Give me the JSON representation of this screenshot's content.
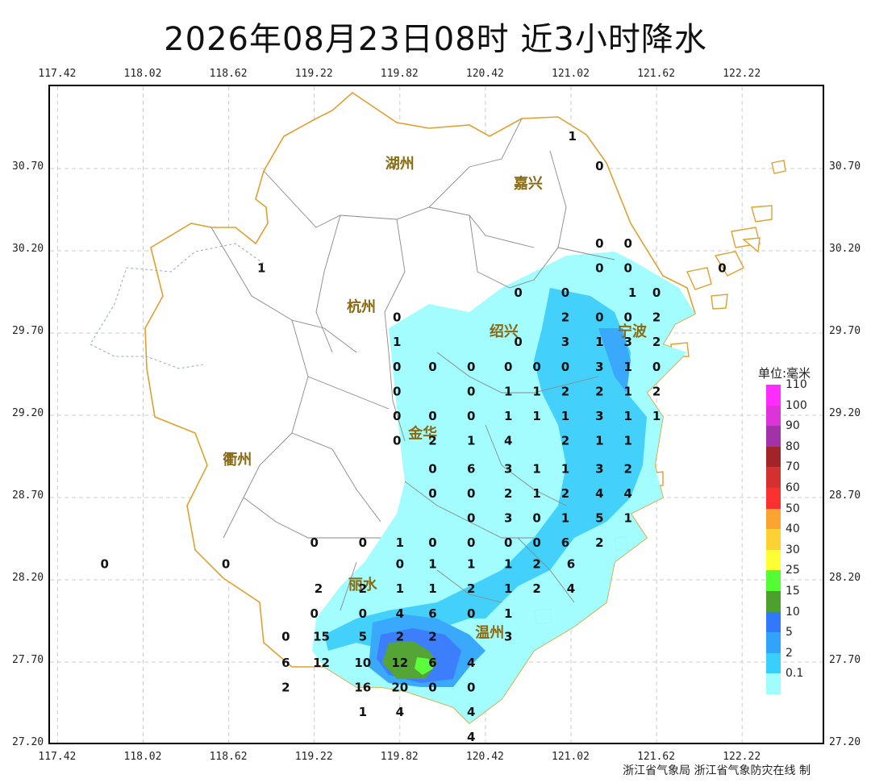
{
  "title": "2026年08月23日08时 近3小时降水",
  "credit": "浙江省气象局 浙江省气象防灾在线 制",
  "x_ticks": [
    "117.42",
    "118.02",
    "118.62",
    "119.22",
    "119.82",
    "120.42",
    "121.02",
    "121.62",
    "122.22"
  ],
  "y_ticks": [
    "30.70",
    "30.20",
    "29.70",
    "29.20",
    "28.70",
    "28.20",
    "27.70",
    "27.20"
  ],
  "cities": [
    {
      "name": "湖州",
      "lon": 119.82,
      "lat": 30.7
    },
    {
      "name": "嘉兴",
      "lon": 120.72,
      "lat": 30.58
    },
    {
      "name": "杭州",
      "lon": 119.55,
      "lat": 29.83
    },
    {
      "name": "绍兴",
      "lon": 120.55,
      "lat": 29.68
    },
    {
      "name": "宁波",
      "lon": 121.45,
      "lat": 29.68
    },
    {
      "name": "金华",
      "lon": 119.98,
      "lat": 29.06
    },
    {
      "name": "衢州",
      "lon": 118.68,
      "lat": 28.9
    },
    {
      "name": "丽水",
      "lon": 119.56,
      "lat": 28.14
    },
    {
      "name": "温州",
      "lon": 120.45,
      "lat": 27.85
    }
  ],
  "legend": {
    "title": "单位:毫米",
    "items": [
      {
        "label": "110",
        "color": "#ff2bff"
      },
      {
        "label": "100",
        "color": "#dc34d8"
      },
      {
        "label": "90",
        "color": "#a332a8"
      },
      {
        "label": "80",
        "color": "#a02428"
      },
      {
        "label": "70",
        "color": "#d23130"
      },
      {
        "label": "60",
        "color": "#fb3130"
      },
      {
        "label": "50",
        "color": "#fca431"
      },
      {
        "label": "40",
        "color": "#fdd033"
      },
      {
        "label": "30",
        "color": "#fffe34"
      },
      {
        "label": "25",
        "color": "#54fd33"
      },
      {
        "label": "15",
        "color": "#4ba12c"
      },
      {
        "label": "10",
        "color": "#3278fc"
      },
      {
        "label": "5",
        "color": "#30a4fb"
      },
      {
        "label": "2",
        "color": "#39cffb"
      },
      {
        "label": "0.1",
        "color": "#9ffdfe"
      }
    ]
  },
  "stations": [
    {
      "lon": 121.03,
      "lat": 30.9,
      "v": "1"
    },
    {
      "lon": 121.22,
      "lat": 30.72,
      "v": "0"
    },
    {
      "lon": 121.22,
      "lat": 30.25,
      "v": "0"
    },
    {
      "lon": 121.42,
      "lat": 30.25,
      "v": "0"
    },
    {
      "lon": 118.85,
      "lat": 30.1,
      "v": "1"
    },
    {
      "lon": 121.22,
      "lat": 30.1,
      "v": "0"
    },
    {
      "lon": 121.42,
      "lat": 30.1,
      "v": "0"
    },
    {
      "lon": 122.08,
      "lat": 30.1,
      "v": "0"
    },
    {
      "lon": 120.65,
      "lat": 29.95,
      "v": "0"
    },
    {
      "lon": 120.98,
      "lat": 29.95,
      "v": "0"
    },
    {
      "lon": 121.45,
      "lat": 29.95,
      "v": "1"
    },
    {
      "lon": 121.62,
      "lat": 29.95,
      "v": "0"
    },
    {
      "lon": 119.8,
      "lat": 29.8,
      "v": "0"
    },
    {
      "lon": 120.98,
      "lat": 29.8,
      "v": "2"
    },
    {
      "lon": 121.22,
      "lat": 29.8,
      "v": "0"
    },
    {
      "lon": 121.42,
      "lat": 29.8,
      "v": "0"
    },
    {
      "lon": 121.62,
      "lat": 29.8,
      "v": "2"
    },
    {
      "lon": 119.8,
      "lat": 29.65,
      "v": "1"
    },
    {
      "lon": 120.65,
      "lat": 29.65,
      "v": "0"
    },
    {
      "lon": 120.98,
      "lat": 29.65,
      "v": "3"
    },
    {
      "lon": 121.22,
      "lat": 29.65,
      "v": "1"
    },
    {
      "lon": 121.42,
      "lat": 29.65,
      "v": "3"
    },
    {
      "lon": 121.62,
      "lat": 29.65,
      "v": "2"
    },
    {
      "lon": 119.8,
      "lat": 29.5,
      "v": "0"
    },
    {
      "lon": 120.05,
      "lat": 29.5,
      "v": "0"
    },
    {
      "lon": 120.32,
      "lat": 29.5,
      "v": "0"
    },
    {
      "lon": 120.58,
      "lat": 29.5,
      "v": "0"
    },
    {
      "lon": 120.78,
      "lat": 29.5,
      "v": "0"
    },
    {
      "lon": 120.98,
      "lat": 29.5,
      "v": "0"
    },
    {
      "lon": 121.22,
      "lat": 29.5,
      "v": "3"
    },
    {
      "lon": 121.42,
      "lat": 29.5,
      "v": "1"
    },
    {
      "lon": 121.62,
      "lat": 29.5,
      "v": "0"
    },
    {
      "lon": 119.8,
      "lat": 29.35,
      "v": "0"
    },
    {
      "lon": 120.32,
      "lat": 29.35,
      "v": "0"
    },
    {
      "lon": 120.58,
      "lat": 29.35,
      "v": "1"
    },
    {
      "lon": 120.78,
      "lat": 29.35,
      "v": "1"
    },
    {
      "lon": 120.98,
      "lat": 29.35,
      "v": "2"
    },
    {
      "lon": 121.22,
      "lat": 29.35,
      "v": "2"
    },
    {
      "lon": 121.42,
      "lat": 29.35,
      "v": "1"
    },
    {
      "lon": 121.62,
      "lat": 29.35,
      "v": "2"
    },
    {
      "lon": 119.8,
      "lat": 29.2,
      "v": "0"
    },
    {
      "lon": 120.05,
      "lat": 29.2,
      "v": "0"
    },
    {
      "lon": 120.32,
      "lat": 29.2,
      "v": "0"
    },
    {
      "lon": 120.58,
      "lat": 29.2,
      "v": "1"
    },
    {
      "lon": 120.78,
      "lat": 29.2,
      "v": "1"
    },
    {
      "lon": 120.98,
      "lat": 29.2,
      "v": "1"
    },
    {
      "lon": 121.22,
      "lat": 29.2,
      "v": "3"
    },
    {
      "lon": 121.42,
      "lat": 29.2,
      "v": "1"
    },
    {
      "lon": 121.62,
      "lat": 29.2,
      "v": "1"
    },
    {
      "lon": 119.8,
      "lat": 29.05,
      "v": "0"
    },
    {
      "lon": 120.05,
      "lat": 29.05,
      "v": "2"
    },
    {
      "lon": 120.32,
      "lat": 29.05,
      "v": "1"
    },
    {
      "lon": 120.58,
      "lat": 29.05,
      "v": "4"
    },
    {
      "lon": 120.98,
      "lat": 29.05,
      "v": "2"
    },
    {
      "lon": 121.22,
      "lat": 29.05,
      "v": "1"
    },
    {
      "lon": 121.42,
      "lat": 29.05,
      "v": "1"
    },
    {
      "lon": 120.05,
      "lat": 28.88,
      "v": "0"
    },
    {
      "lon": 120.32,
      "lat": 28.88,
      "v": "6"
    },
    {
      "lon": 120.58,
      "lat": 28.88,
      "v": "3"
    },
    {
      "lon": 120.78,
      "lat": 28.88,
      "v": "1"
    },
    {
      "lon": 120.98,
      "lat": 28.88,
      "v": "1"
    },
    {
      "lon": 121.22,
      "lat": 28.88,
      "v": "3"
    },
    {
      "lon": 121.42,
      "lat": 28.88,
      "v": "2"
    },
    {
      "lon": 120.05,
      "lat": 28.73,
      "v": "0"
    },
    {
      "lon": 120.32,
      "lat": 28.73,
      "v": "0"
    },
    {
      "lon": 120.58,
      "lat": 28.73,
      "v": "2"
    },
    {
      "lon": 120.78,
      "lat": 28.73,
      "v": "1"
    },
    {
      "lon": 120.98,
      "lat": 28.73,
      "v": "2"
    },
    {
      "lon": 121.22,
      "lat": 28.73,
      "v": "4"
    },
    {
      "lon": 121.42,
      "lat": 28.73,
      "v": "4"
    },
    {
      "lon": 120.32,
      "lat": 28.58,
      "v": "0"
    },
    {
      "lon": 120.58,
      "lat": 28.58,
      "v": "3"
    },
    {
      "lon": 120.78,
      "lat": 28.58,
      "v": "0"
    },
    {
      "lon": 120.98,
      "lat": 28.58,
      "v": "1"
    },
    {
      "lon": 121.22,
      "lat": 28.58,
      "v": "5"
    },
    {
      "lon": 121.42,
      "lat": 28.58,
      "v": "1"
    },
    {
      "lon": 119.22,
      "lat": 28.43,
      "v": "0"
    },
    {
      "lon": 119.56,
      "lat": 28.43,
      "v": "0"
    },
    {
      "lon": 119.82,
      "lat": 28.43,
      "v": "1"
    },
    {
      "lon": 120.05,
      "lat": 28.43,
      "v": "0"
    },
    {
      "lon": 120.32,
      "lat": 28.43,
      "v": "0"
    },
    {
      "lon": 120.58,
      "lat": 28.43,
      "v": "0"
    },
    {
      "lon": 120.78,
      "lat": 28.43,
      "v": "0"
    },
    {
      "lon": 120.98,
      "lat": 28.43,
      "v": "6"
    },
    {
      "lon": 121.22,
      "lat": 28.43,
      "v": "2"
    },
    {
      "lon": 117.75,
      "lat": 28.3,
      "v": "0"
    },
    {
      "lon": 118.6,
      "lat": 28.3,
      "v": "0"
    },
    {
      "lon": 119.82,
      "lat": 28.3,
      "v": "0"
    },
    {
      "lon": 120.05,
      "lat": 28.3,
      "v": "1"
    },
    {
      "lon": 120.32,
      "lat": 28.3,
      "v": "1"
    },
    {
      "lon": 120.58,
      "lat": 28.3,
      "v": "1"
    },
    {
      "lon": 120.78,
      "lat": 28.3,
      "v": "2"
    },
    {
      "lon": 121.02,
      "lat": 28.3,
      "v": "6"
    },
    {
      "lon": 119.25,
      "lat": 28.15,
      "v": "2"
    },
    {
      "lon": 119.56,
      "lat": 28.15,
      "v": "2"
    },
    {
      "lon": 119.82,
      "lat": 28.15,
      "v": "1"
    },
    {
      "lon": 120.05,
      "lat": 28.15,
      "v": "1"
    },
    {
      "lon": 120.32,
      "lat": 28.15,
      "v": "2"
    },
    {
      "lon": 120.58,
      "lat": 28.15,
      "v": "1"
    },
    {
      "lon": 120.78,
      "lat": 28.15,
      "v": "2"
    },
    {
      "lon": 121.02,
      "lat": 28.15,
      "v": "4"
    },
    {
      "lon": 119.22,
      "lat": 28.0,
      "v": "0"
    },
    {
      "lon": 119.56,
      "lat": 28.0,
      "v": "0"
    },
    {
      "lon": 119.82,
      "lat": 28.0,
      "v": "4"
    },
    {
      "lon": 120.05,
      "lat": 28.0,
      "v": "6"
    },
    {
      "lon": 120.32,
      "lat": 28.0,
      "v": "0"
    },
    {
      "lon": 120.58,
      "lat": 28.0,
      "v": "1"
    },
    {
      "lon": 119.02,
      "lat": 27.86,
      "v": "0"
    },
    {
      "lon": 119.27,
      "lat": 27.86,
      "v": "15"
    },
    {
      "lon": 119.56,
      "lat": 27.86,
      "v": "5"
    },
    {
      "lon": 119.82,
      "lat": 27.86,
      "v": "2"
    },
    {
      "lon": 120.05,
      "lat": 27.86,
      "v": "2"
    },
    {
      "lon": 120.58,
      "lat": 27.86,
      "v": "3"
    },
    {
      "lon": 119.02,
      "lat": 27.7,
      "v": "6"
    },
    {
      "lon": 119.27,
      "lat": 27.7,
      "v": "12"
    },
    {
      "lon": 119.56,
      "lat": 27.7,
      "v": "10"
    },
    {
      "lon": 119.82,
      "lat": 27.7,
      "v": "12"
    },
    {
      "lon": 120.05,
      "lat": 27.7,
      "v": "6"
    },
    {
      "lon": 120.32,
      "lat": 27.7,
      "v": "4"
    },
    {
      "lon": 119.02,
      "lat": 27.55,
      "v": "2"
    },
    {
      "lon": 119.56,
      "lat": 27.55,
      "v": "16"
    },
    {
      "lon": 119.82,
      "lat": 27.55,
      "v": "20"
    },
    {
      "lon": 120.05,
      "lat": 27.55,
      "v": "0"
    },
    {
      "lon": 120.32,
      "lat": 27.55,
      "v": "0"
    },
    {
      "lon": 119.56,
      "lat": 27.4,
      "v": "1"
    },
    {
      "lon": 119.82,
      "lat": 27.4,
      "v": "4"
    },
    {
      "lon": 120.32,
      "lat": 27.4,
      "v": "4"
    },
    {
      "lon": 120.32,
      "lat": 27.25,
      "v": "4"
    }
  ]
}
